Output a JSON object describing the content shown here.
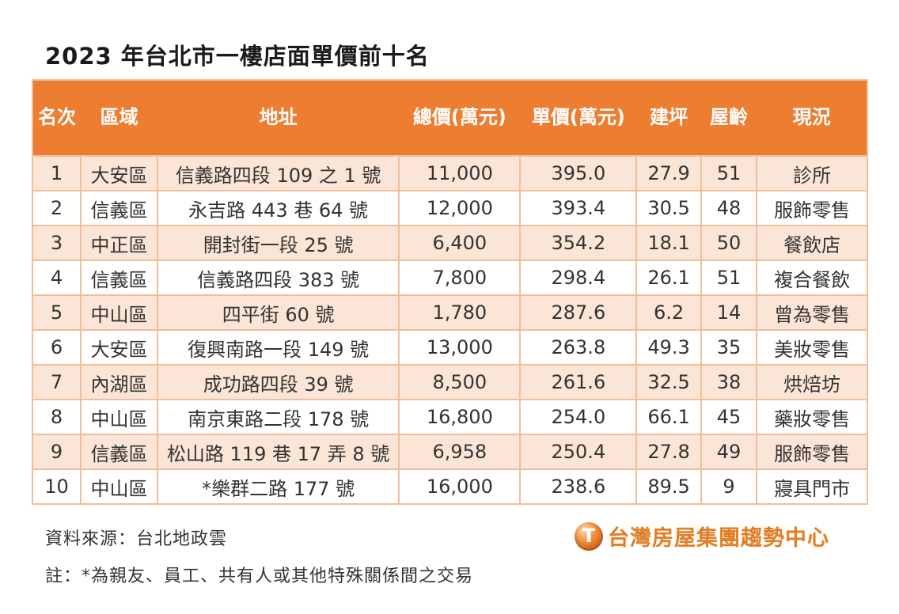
{
  "page_title": "2023 年台北市一樓店面單價前十名",
  "colors": {
    "header_bg": "#ED7D31",
    "alt_row_bg": "#FBE5D6",
    "grid_border": "#F2BE9A",
    "brand_orange": "#E07F26",
    "text": "#333333"
  },
  "chart_data": {
    "type": "table",
    "title": "2023 年台北市一樓店面單價前十名",
    "columns": [
      "名次",
      "區域",
      "地址",
      "總價(萬元)",
      "單價(萬元)",
      "建坪",
      "屋齡",
      "現況"
    ],
    "rows": [
      [
        "1",
        "大安區",
        "信義路四段 109 之 1 號",
        "11,000",
        "395.0",
        "27.9",
        "51",
        "診所"
      ],
      [
        "2",
        "信義區",
        "永吉路 443 巷 64 號",
        "12,000",
        "393.4",
        "30.5",
        "48",
        "服飾零售"
      ],
      [
        "3",
        "中正區",
        "開封街一段 25 號",
        "6,400",
        "354.2",
        "18.1",
        "50",
        "餐飲店"
      ],
      [
        "4",
        "信義區",
        "信義路四段 383 號",
        "7,800",
        "298.4",
        "26.1",
        "51",
        "複合餐飲"
      ],
      [
        "5",
        "中山區",
        "四平街 60 號",
        "1,780",
        "287.6",
        "6.2",
        "14",
        "曾為零售"
      ],
      [
        "6",
        "大安區",
        "復興南路一段 149 號",
        "13,000",
        "263.8",
        "49.3",
        "35",
        "美妝零售"
      ],
      [
        "7",
        "內湖區",
        "成功路四段 39 號",
        "8,500",
        "261.6",
        "32.5",
        "38",
        "烘焙坊"
      ],
      [
        "8",
        "中山區",
        "南京東路二段 178 號",
        "16,800",
        "254.0",
        "66.1",
        "45",
        "藥妝零售"
      ],
      [
        "9",
        "信義區",
        "松山路 119 巷 17 弄 8 號",
        "6,958",
        "250.4",
        "27.8",
        "49",
        "服飾零售"
      ],
      [
        "10",
        "中山區",
        "*樂群二路 177 號",
        "16,000",
        "238.6",
        "89.5",
        "9",
        "寢具門市"
      ]
    ],
    "layout_hints": {
      "striped_rows": "odd rows peach, even rows white",
      "header_style": "solid orange with white bold text",
      "all_cells_centered": true
    }
  },
  "footer": {
    "source": "資料來源：台北地政雲",
    "note": "註：*為親友、員工、共有人或其他特殊關係間之交易",
    "brand": {
      "icon_letter": "T",
      "name": "台灣房屋集團趨勢中心"
    }
  }
}
